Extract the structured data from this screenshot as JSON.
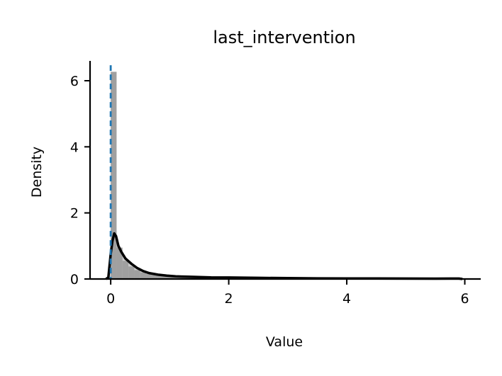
{
  "chart_data": {
    "type": "histogram",
    "title": "last_intervention",
    "xlabel": "Value",
    "ylabel": "Density",
    "xlim": [
      -0.35,
      6.27
    ],
    "ylim": [
      0,
      6.6
    ],
    "x_ticks": [
      0,
      2,
      4,
      6
    ],
    "x_tick_labels": [
      "0",
      "2",
      "4",
      "6"
    ],
    "y_ticks": [
      0,
      2,
      4,
      6
    ],
    "y_tick_labels": [
      "0",
      "2",
      "4",
      "6"
    ],
    "grid": false,
    "histogram_bars": [
      {
        "x0": 0.0,
        "x1": 0.1,
        "value": 6.27
      },
      {
        "x0": 0.1,
        "x1": 0.2,
        "value": 0.95
      },
      {
        "x0": 0.2,
        "x1": 0.3,
        "value": 0.55
      },
      {
        "x0": 0.3,
        "x1": 0.4,
        "value": 0.38
      },
      {
        "x0": 0.4,
        "x1": 0.5,
        "value": 0.27
      },
      {
        "x0": 0.5,
        "x1": 0.6,
        "value": 0.2
      },
      {
        "x0": 0.6,
        "x1": 0.7,
        "value": 0.16
      },
      {
        "x0": 0.7,
        "x1": 0.8,
        "value": 0.13
      },
      {
        "x0": 0.8,
        "x1": 0.9,
        "value": 0.11
      },
      {
        "x0": 0.9,
        "x1": 1.0,
        "value": 0.1
      },
      {
        "x0": 1.0,
        "x1": 1.2,
        "value": 0.08
      },
      {
        "x0": 1.2,
        "x1": 1.4,
        "value": 0.07
      },
      {
        "x0": 1.4,
        "x1": 1.6,
        "value": 0.06
      },
      {
        "x0": 1.6,
        "x1": 1.8,
        "value": 0.05
      },
      {
        "x0": 1.8,
        "x1": 2.0,
        "value": 0.05
      },
      {
        "x0": 2.0,
        "x1": 2.5,
        "value": 0.04
      },
      {
        "x0": 2.5,
        "x1": 3.0,
        "value": 0.03
      },
      {
        "x0": 3.0,
        "x1": 4.0,
        "value": 0.02
      },
      {
        "x0": 4.0,
        "x1": 5.0,
        "value": 0.015
      },
      {
        "x0": 5.0,
        "x1": 5.95,
        "value": 0.012
      }
    ],
    "kde": [
      {
        "x": -0.08,
        "y": 0.0
      },
      {
        "x": -0.04,
        "y": 0.05
      },
      {
        "x": 0.0,
        "y": 0.75
      },
      {
        "x": 0.03,
        "y": 1.15
      },
      {
        "x": 0.06,
        "y": 1.38
      },
      {
        "x": 0.09,
        "y": 1.3
      },
      {
        "x": 0.13,
        "y": 1.0
      },
      {
        "x": 0.18,
        "y": 0.82
      },
      {
        "x": 0.25,
        "y": 0.62
      },
      {
        "x": 0.35,
        "y": 0.46
      },
      {
        "x": 0.45,
        "y": 0.33
      },
      {
        "x": 0.55,
        "y": 0.24
      },
      {
        "x": 0.65,
        "y": 0.18
      },
      {
        "x": 0.8,
        "y": 0.13
      },
      {
        "x": 0.95,
        "y": 0.1
      },
      {
        "x": 1.1,
        "y": 0.08
      },
      {
        "x": 1.3,
        "y": 0.07
      },
      {
        "x": 1.5,
        "y": 0.06
      },
      {
        "x": 1.7,
        "y": 0.05
      },
      {
        "x": 2.0,
        "y": 0.045
      },
      {
        "x": 2.5,
        "y": 0.035
      },
      {
        "x": 3.0,
        "y": 0.025
      },
      {
        "x": 3.5,
        "y": 0.02
      },
      {
        "x": 4.0,
        "y": 0.018
      },
      {
        "x": 4.5,
        "y": 0.015
      },
      {
        "x": 5.0,
        "y": 0.012
      },
      {
        "x": 5.5,
        "y": 0.01
      },
      {
        "x": 5.9,
        "y": 0.012
      },
      {
        "x": 5.96,
        "y": 0.0
      }
    ],
    "reference_line": {
      "x": 0.0,
      "style": "dashed"
    },
    "colors": {
      "bars": "#a0a0a0",
      "kde": "#000000",
      "reference_line": "#1f77b4",
      "axes": "#000000"
    }
  }
}
